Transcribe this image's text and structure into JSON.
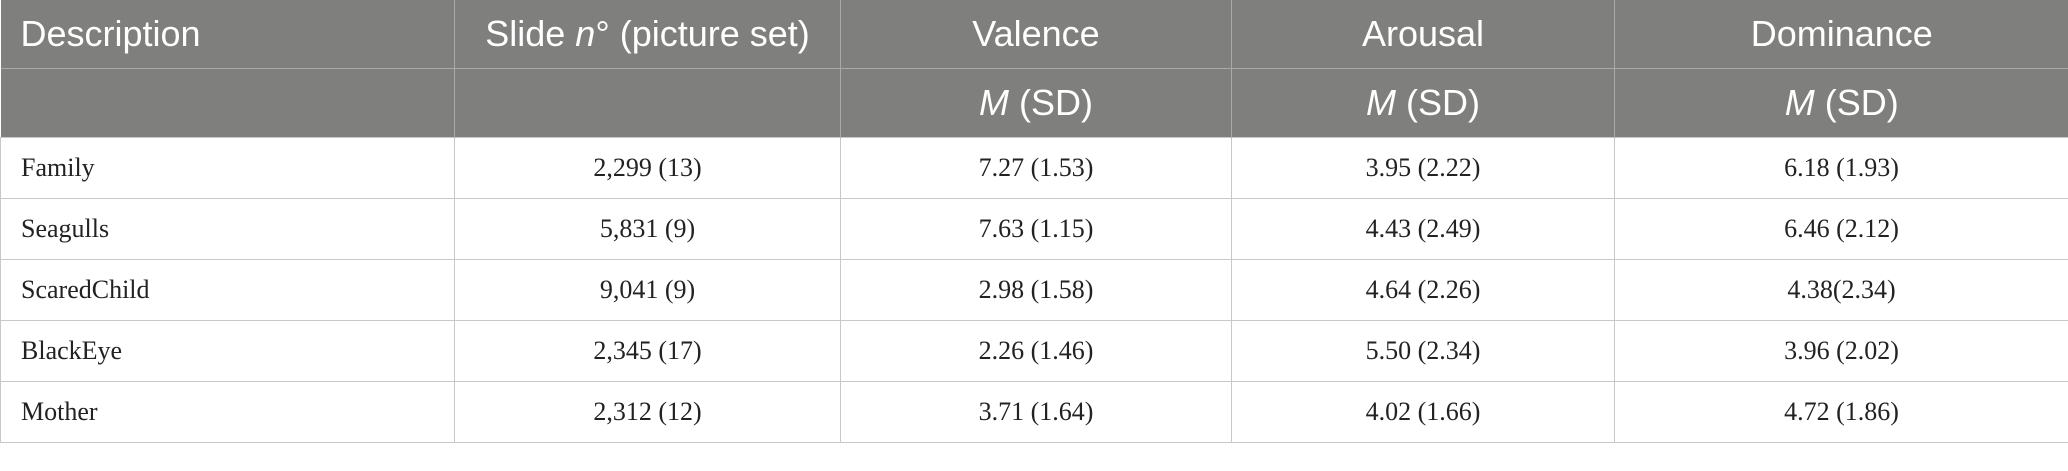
{
  "header": {
    "row1": {
      "description": "Description",
      "slide_prefix": "Slide ",
      "slide_n": "n",
      "slide_suffix": "° (picture set)",
      "valence": "Valence",
      "arousal": "Arousal",
      "dominance": "Dominance"
    },
    "row2": {
      "m": "M",
      "sd": " (SD)"
    }
  },
  "rows": [
    {
      "description": "Family",
      "slide": "2,299 (13)",
      "valence": "7.27 (1.53)",
      "arousal": "3.95 (2.22)",
      "dominance": "6.18 (1.93)"
    },
    {
      "description": "Seagulls",
      "slide": "5,831 (9)",
      "valence": "7.63 (1.15)",
      "arousal": "4.43 (2.49)",
      "dominance": "6.46 (2.12)"
    },
    {
      "description": "ScaredChild",
      "slide": "9,041 (9)",
      "valence": "2.98 (1.58)",
      "arousal": "4.64 (2.26)",
      "dominance": "4.38(2.34)"
    },
    {
      "description": "BlackEye",
      "slide": "2,345 (17)",
      "valence": "2.26 (1.46)",
      "arousal": "5.50 (2.34)",
      "dominance": "3.96 (2.02)"
    },
    {
      "description": "Mother",
      "slide": "2,312 (12)",
      "valence": "3.71 (1.64)",
      "arousal": "4.02 (1.66)",
      "dominance": "4.72 (1.86)"
    }
  ]
}
